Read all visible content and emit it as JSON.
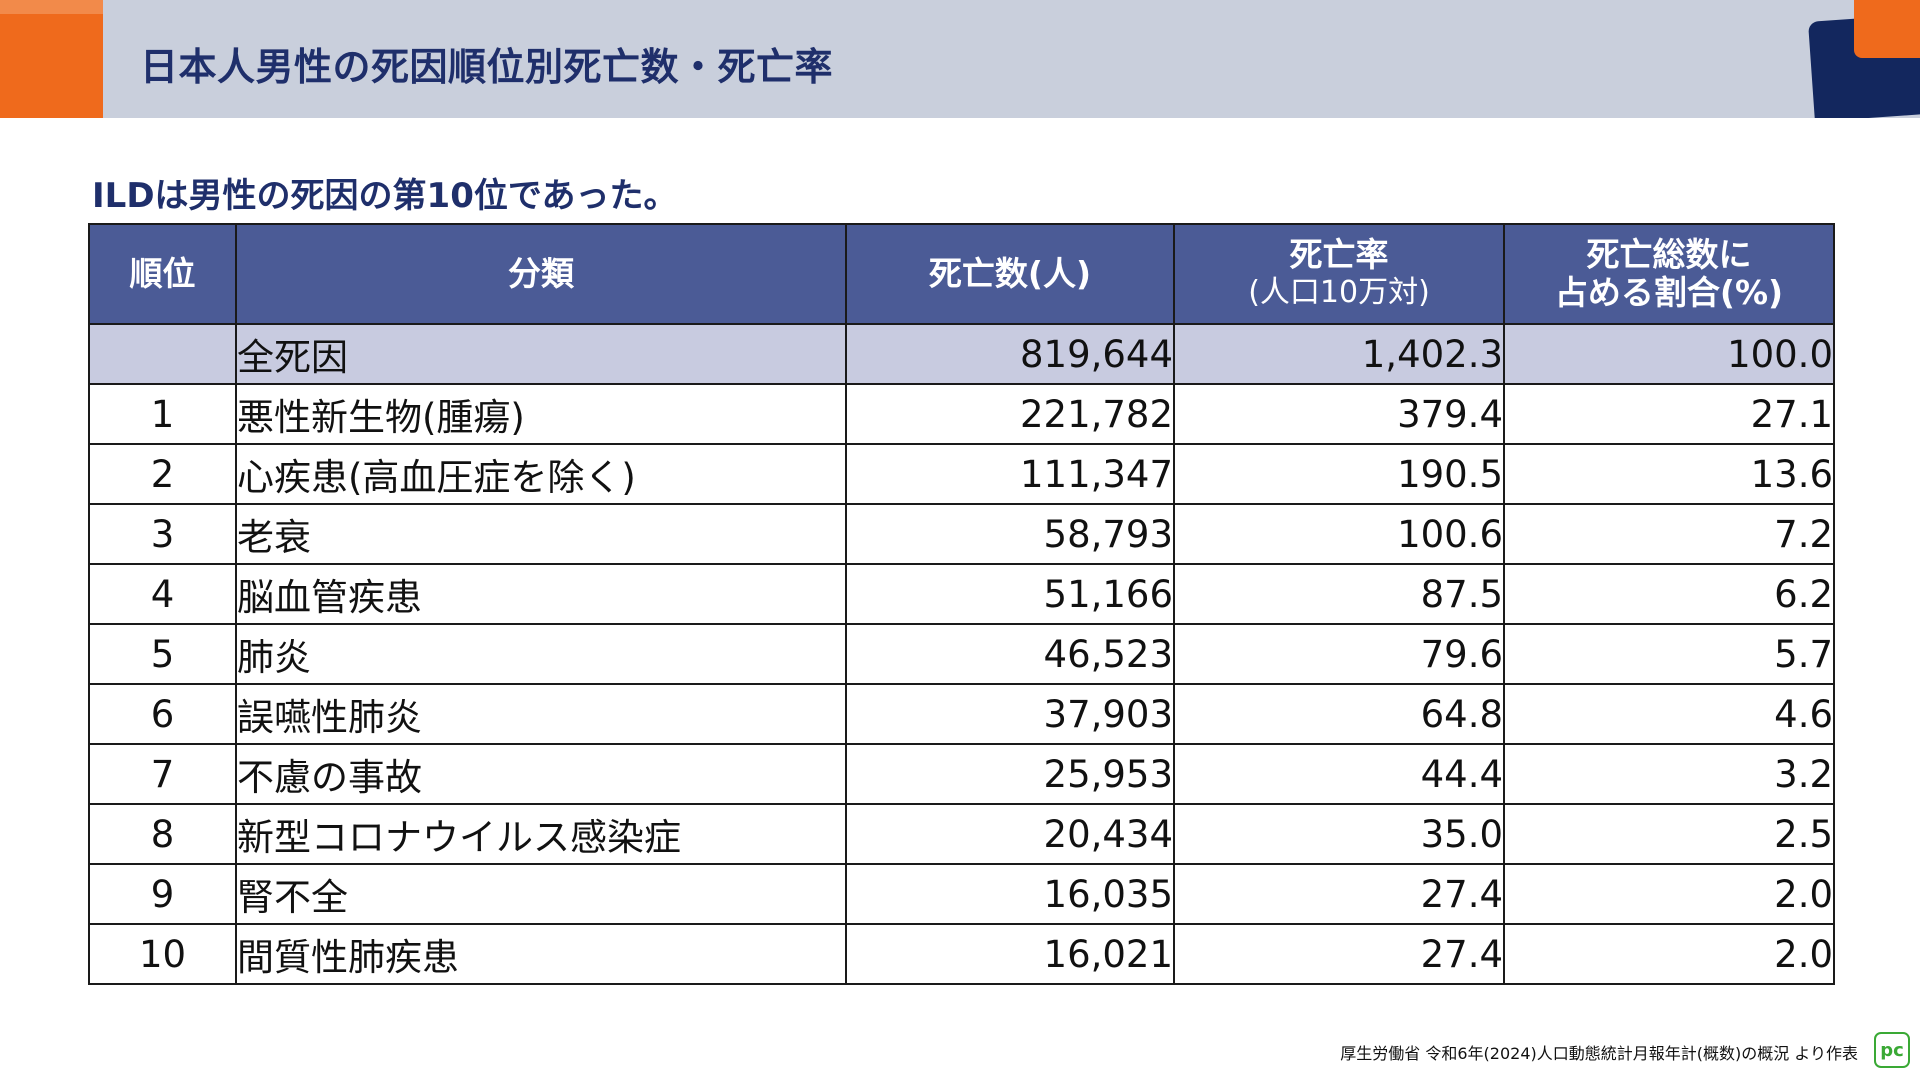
{
  "header": {
    "title": "日本人男性の死因順位別死亡数・死亡率"
  },
  "subtitle": "ILDは男性の死因の第10位であった。",
  "table": {
    "columns": {
      "rank": "順位",
      "category": "分類",
      "deaths": "死亡数(人)",
      "rate_line1": "死亡率",
      "rate_line2": "(人口10万対)",
      "share_line1": "死亡総数に",
      "share_line2": "占める割合(%)"
    },
    "total": {
      "rank": "",
      "category": "全死因",
      "deaths": "819,644",
      "rate": "1,402.3",
      "share": "100.0"
    },
    "rows": [
      {
        "rank": "1",
        "category": "悪性新生物(腫瘍)",
        "deaths": "221,782",
        "rate": "379.4",
        "share": "27.1"
      },
      {
        "rank": "2",
        "category": "心疾患(高血圧症を除く)",
        "deaths": "111,347",
        "rate": "190.5",
        "share": "13.6"
      },
      {
        "rank": "3",
        "category": "老衰",
        "deaths": "58,793",
        "rate": "100.6",
        "share": "7.2"
      },
      {
        "rank": "4",
        "category": "脳血管疾患",
        "deaths": "51,166",
        "rate": "87.5",
        "share": "6.2"
      },
      {
        "rank": "5",
        "category": "肺炎",
        "deaths": "46,523",
        "rate": "79.6",
        "share": "5.7"
      },
      {
        "rank": "6",
        "category": "誤嚥性肺炎",
        "deaths": "37,903",
        "rate": "64.8",
        "share": "4.6"
      },
      {
        "rank": "7",
        "category": "不慮の事故",
        "deaths": "25,953",
        "rate": "44.4",
        "share": "3.2"
      },
      {
        "rank": "8",
        "category": "新型コロナウイルス感染症",
        "deaths": "20,434",
        "rate": "35.0",
        "share": "2.5"
      },
      {
        "rank": "9",
        "category": "腎不全",
        "deaths": "16,035",
        "rate": "27.4",
        "share": "2.0"
      },
      {
        "rank": "10",
        "category": "間質性肺疾患",
        "deaths": "16,021",
        "rate": "27.4",
        "share": "2.0"
      }
    ]
  },
  "footer": {
    "source": "厚生労働省 令和6年(2024)人口動態統計月報年計(概数)の概況 より作表",
    "logo_text": "pc"
  },
  "colors": {
    "header_band": "#c9cfdc",
    "accent_orange": "#ef6a1c",
    "accent_navy": "#13275e",
    "title_text": "#1f2f6b",
    "table_header": "#4b5b96",
    "total_row": "#c8cbe0",
    "logo_green": "#3aa935"
  }
}
